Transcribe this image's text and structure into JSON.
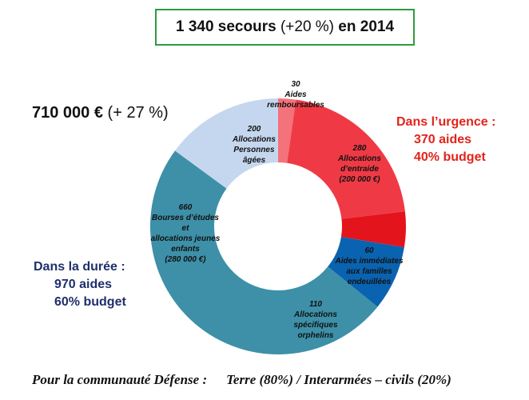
{
  "header": {
    "count": "1 340 secours",
    "change": "(+20 %)",
    "suffix": "en 2014"
  },
  "total": {
    "amount": "710 000 €",
    "change": "(+ 27 %)"
  },
  "urgence": {
    "title": "Dans l’urgence :",
    "aides": "370 aides",
    "budget": "40% budget"
  },
  "duree": {
    "title": "Dans la durée :",
    "aides": "970 aides",
    "budget": "60% budget"
  },
  "footer": {
    "left": "Pour la communauté Défense :",
    "right": "Terre (80%) / Interarmées – civils (20%)"
  },
  "chart_data": {
    "type": "pie",
    "donut": true,
    "start": "top",
    "direction": "clockwise",
    "categories": [
      "Aides remboursables",
      "Allocations d’entraide",
      "Aides immédiates aux familles endeuillées",
      "Allocations spécifiques orphelins",
      "Bourses d’études et allocations jeunes enfants",
      "Allocations Personnes âgées"
    ],
    "values": [
      30,
      280,
      60,
      110,
      660,
      200
    ],
    "colors": [
      "#f4727a",
      "#ef3a45",
      "#e4141c",
      "#0a63b0",
      "#3d90a8",
      "#c5d7ee"
    ],
    "labels": [
      [
        "30",
        "Aides",
        "remboursables"
      ],
      [
        "280",
        "Allocations",
        "d’entraide",
        "(200 000 €)"
      ],
      [
        "60",
        "Aides immédiates",
        "aux familles",
        "endeuillées"
      ],
      [
        "110",
        "Allocations",
        "spécifiques",
        "orphelins"
      ],
      [
        "660",
        "Bourses d’études",
        "et",
        "allocations jeunes",
        "enfants",
        "(280 000 €)"
      ],
      [
        "200",
        "Allocations",
        "Personnes",
        "âgées"
      ]
    ]
  }
}
